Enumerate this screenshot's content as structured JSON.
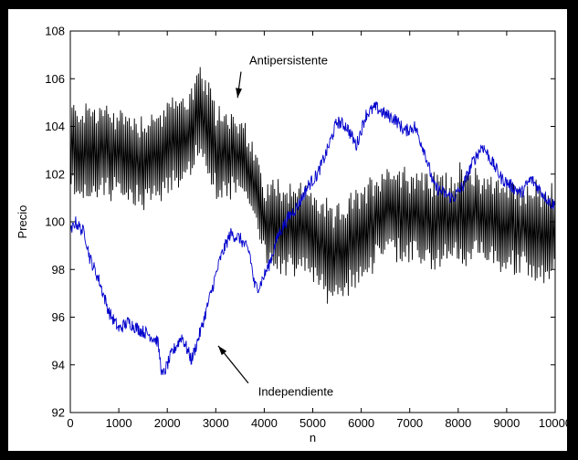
{
  "chart_data": {
    "type": "line",
    "title": "",
    "xlabel": "n",
    "ylabel": "Precio",
    "xlim": [
      0,
      10000
    ],
    "ylim": [
      92,
      108
    ],
    "xticks": [
      0,
      1000,
      2000,
      3000,
      4000,
      5000,
      6000,
      7000,
      8000,
      9000,
      10000
    ],
    "yticks": [
      92,
      94,
      96,
      98,
      100,
      102,
      104,
      106,
      108
    ],
    "grid": false,
    "legend": "none",
    "series": [
      {
        "name": "Antipersistente",
        "color": "#000000",
        "x": [
          0,
          500,
          1000,
          1500,
          2000,
          2500,
          2700,
          3000,
          3500,
          3800,
          4000,
          4500,
          5000,
          5400,
          6000,
          6500,
          7000,
          7500,
          8000,
          8500,
          9000,
          9500,
          10000
        ],
        "y": [
          103,
          103,
          102.8,
          102.5,
          103,
          103.8,
          104.5,
          103,
          102.8,
          101.5,
          100,
          99.8,
          99.5,
          98.5,
          99.5,
          100.5,
          100.3,
          100,
          100.3,
          100.2,
          99.8,
          99.6,
          99.5
        ],
        "amplitude": [
          2,
          2,
          2,
          2,
          2,
          2,
          2,
          2,
          1.8,
          1.6,
          1.8,
          2,
          2,
          2,
          2,
          2,
          2,
          2,
          2,
          2,
          2,
          2,
          2
        ]
      },
      {
        "name": "Independiente",
        "color": "#0000cc",
        "x": [
          0,
          100,
          300,
          400,
          600,
          800,
          1000,
          1200,
          1400,
          1600,
          1800,
          1900,
          2100,
          2300,
          2500,
          2700,
          2900,
          3100,
          3300,
          3500,
          3700,
          3800,
          3900,
          4100,
          4300,
          4500,
          4700,
          4900,
          5100,
          5300,
          5500,
          5700,
          5900,
          6100,
          6300,
          6500,
          6700,
          6900,
          7100,
          7300,
          7500,
          7700,
          7900,
          8100,
          8300,
          8500,
          8700,
          8900,
          9100,
          9300,
          9500,
          9700,
          9900,
          10000
        ],
        "y": [
          99.5,
          100,
          99.5,
          98.5,
          97.5,
          96.2,
          95.5,
          95.8,
          95.5,
          95.3,
          95,
          93.5,
          94.5,
          95.2,
          94.2,
          95.5,
          97,
          98.5,
          99.5,
          99.3,
          98.7,
          97.3,
          97.3,
          98.2,
          99.5,
          100.2,
          100.7,
          101.5,
          102,
          103,
          104.2,
          104,
          103.2,
          104.5,
          104.8,
          104.5,
          104.3,
          103.8,
          104,
          103,
          101.5,
          101.2,
          101,
          101.5,
          102.5,
          103.2,
          102.5,
          101.8,
          101.5,
          101.2,
          101.8,
          101.3,
          100.8,
          100.7
        ]
      }
    ],
    "annotations": [
      {
        "text": "Antipersistente",
        "point_x": 3450,
        "point_y": 105.2,
        "label_x": 4500,
        "label_y": 106.6
      },
      {
        "text": "Independiente",
        "point_x": 3050,
        "point_y": 94.8,
        "label_x": 4650,
        "label_y": 92.7
      }
    ]
  }
}
